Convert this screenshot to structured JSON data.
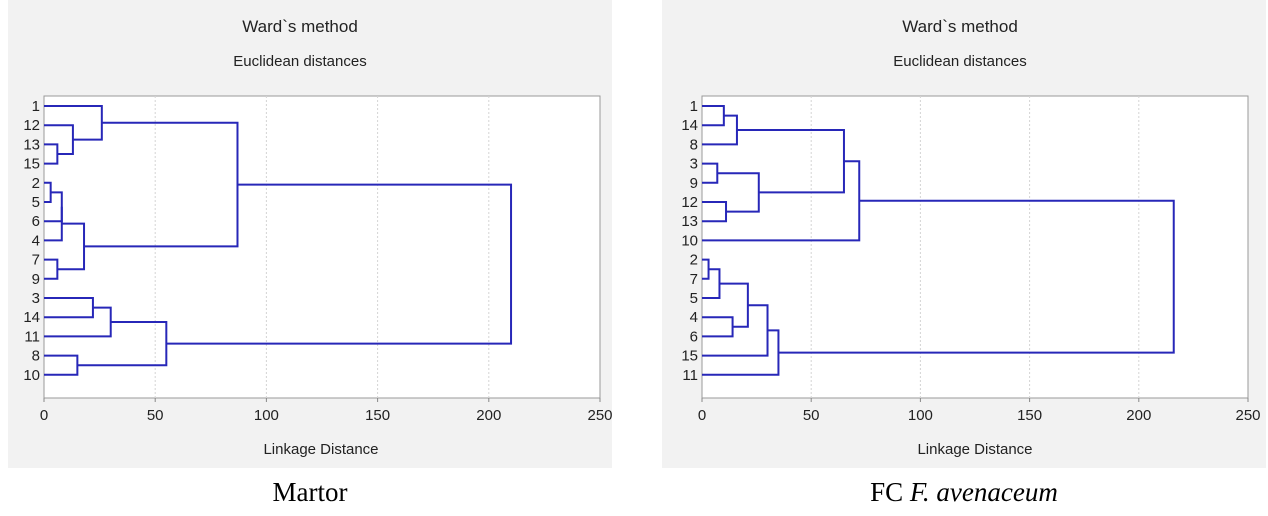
{
  "chart_data": [
    {
      "type": "dendrogram",
      "title": "Ward`s method",
      "subtitle": "Euclidean distances",
      "xlabel": "Linkage Distance",
      "xlim": [
        0,
        250
      ],
      "xticks": [
        0,
        50,
        100,
        150,
        200,
        250
      ],
      "grid": true,
      "leaves": [
        "1",
        "12",
        "13",
        "15",
        "2",
        "5",
        "6",
        "4",
        "7",
        "9",
        "3",
        "14",
        "11",
        "8",
        "10"
      ],
      "merges": [
        {
          "a": "13",
          "b": "15",
          "height": 6
        },
        {
          "a": "2",
          "b": "5",
          "height": 3
        },
        {
          "a": "7",
          "b": "9",
          "height": 6
        },
        {
          "a": "8",
          "b": "10",
          "height": 15
        },
        {
          "a": "3",
          "b": "14",
          "height": 22
        },
        {
          "a": "m2",
          "b": "6",
          "height": 8
        },
        {
          "a": "12",
          "b": "m1",
          "height": 13
        },
        {
          "a": "m6",
          "b": "4",
          "height": 8
        },
        {
          "a": "m8",
          "b": "m3",
          "height": 18
        },
        {
          "a": "1",
          "b": "m7",
          "height": 26
        },
        {
          "a": "m5",
          "b": "11",
          "height": 30
        },
        {
          "a": "m11",
          "b": "m4",
          "height": 55
        },
        {
          "a": "m10",
          "b": "m9",
          "height": 87
        },
        {
          "a": "m13",
          "b": "m12",
          "height": 210
        }
      ]
    },
    {
      "type": "dendrogram",
      "title": "Ward`s method",
      "subtitle": "Euclidean distances",
      "xlabel": "Linkage Distance",
      "xlim": [
        0,
        250
      ],
      "xticks": [
        0,
        50,
        100,
        150,
        200,
        250
      ],
      "grid": true,
      "leaves": [
        "1",
        "14",
        "8",
        "3",
        "9",
        "12",
        "13",
        "10",
        "2",
        "7",
        "5",
        "4",
        "6",
        "15",
        "11"
      ],
      "merges": [
        {
          "a": "2",
          "b": "7",
          "height": 3
        },
        {
          "a": "3",
          "b": "9",
          "height": 7
        },
        {
          "a": "m1",
          "b": "5",
          "height": 8
        },
        {
          "a": "1",
          "b": "14",
          "height": 10
        },
        {
          "a": "12",
          "b": "13",
          "height": 11
        },
        {
          "a": "4",
          "b": "6",
          "height": 14
        },
        {
          "a": "m4",
          "b": "8",
          "height": 16
        },
        {
          "a": "m3",
          "b": "m6",
          "height": 21
        },
        {
          "a": "m2",
          "b": "m5",
          "height": 26
        },
        {
          "a": "m8",
          "b": "15",
          "height": 30
        },
        {
          "a": "m10",
          "b": "11",
          "height": 35
        },
        {
          "a": "m7",
          "b": "m9",
          "height": 65
        },
        {
          "a": "m12",
          "b": "10",
          "height": 72
        },
        {
          "a": "m13",
          "b": "m11",
          "height": 216
        }
      ]
    }
  ],
  "captions": {
    "left": "Martor",
    "right_prefix": "FC",
    "right_italic": "F. avenaceum"
  },
  "colors": {
    "line": "#2727b8",
    "grid": "#d4d4d4",
    "axis": "#888888",
    "text": "#222222"
  }
}
